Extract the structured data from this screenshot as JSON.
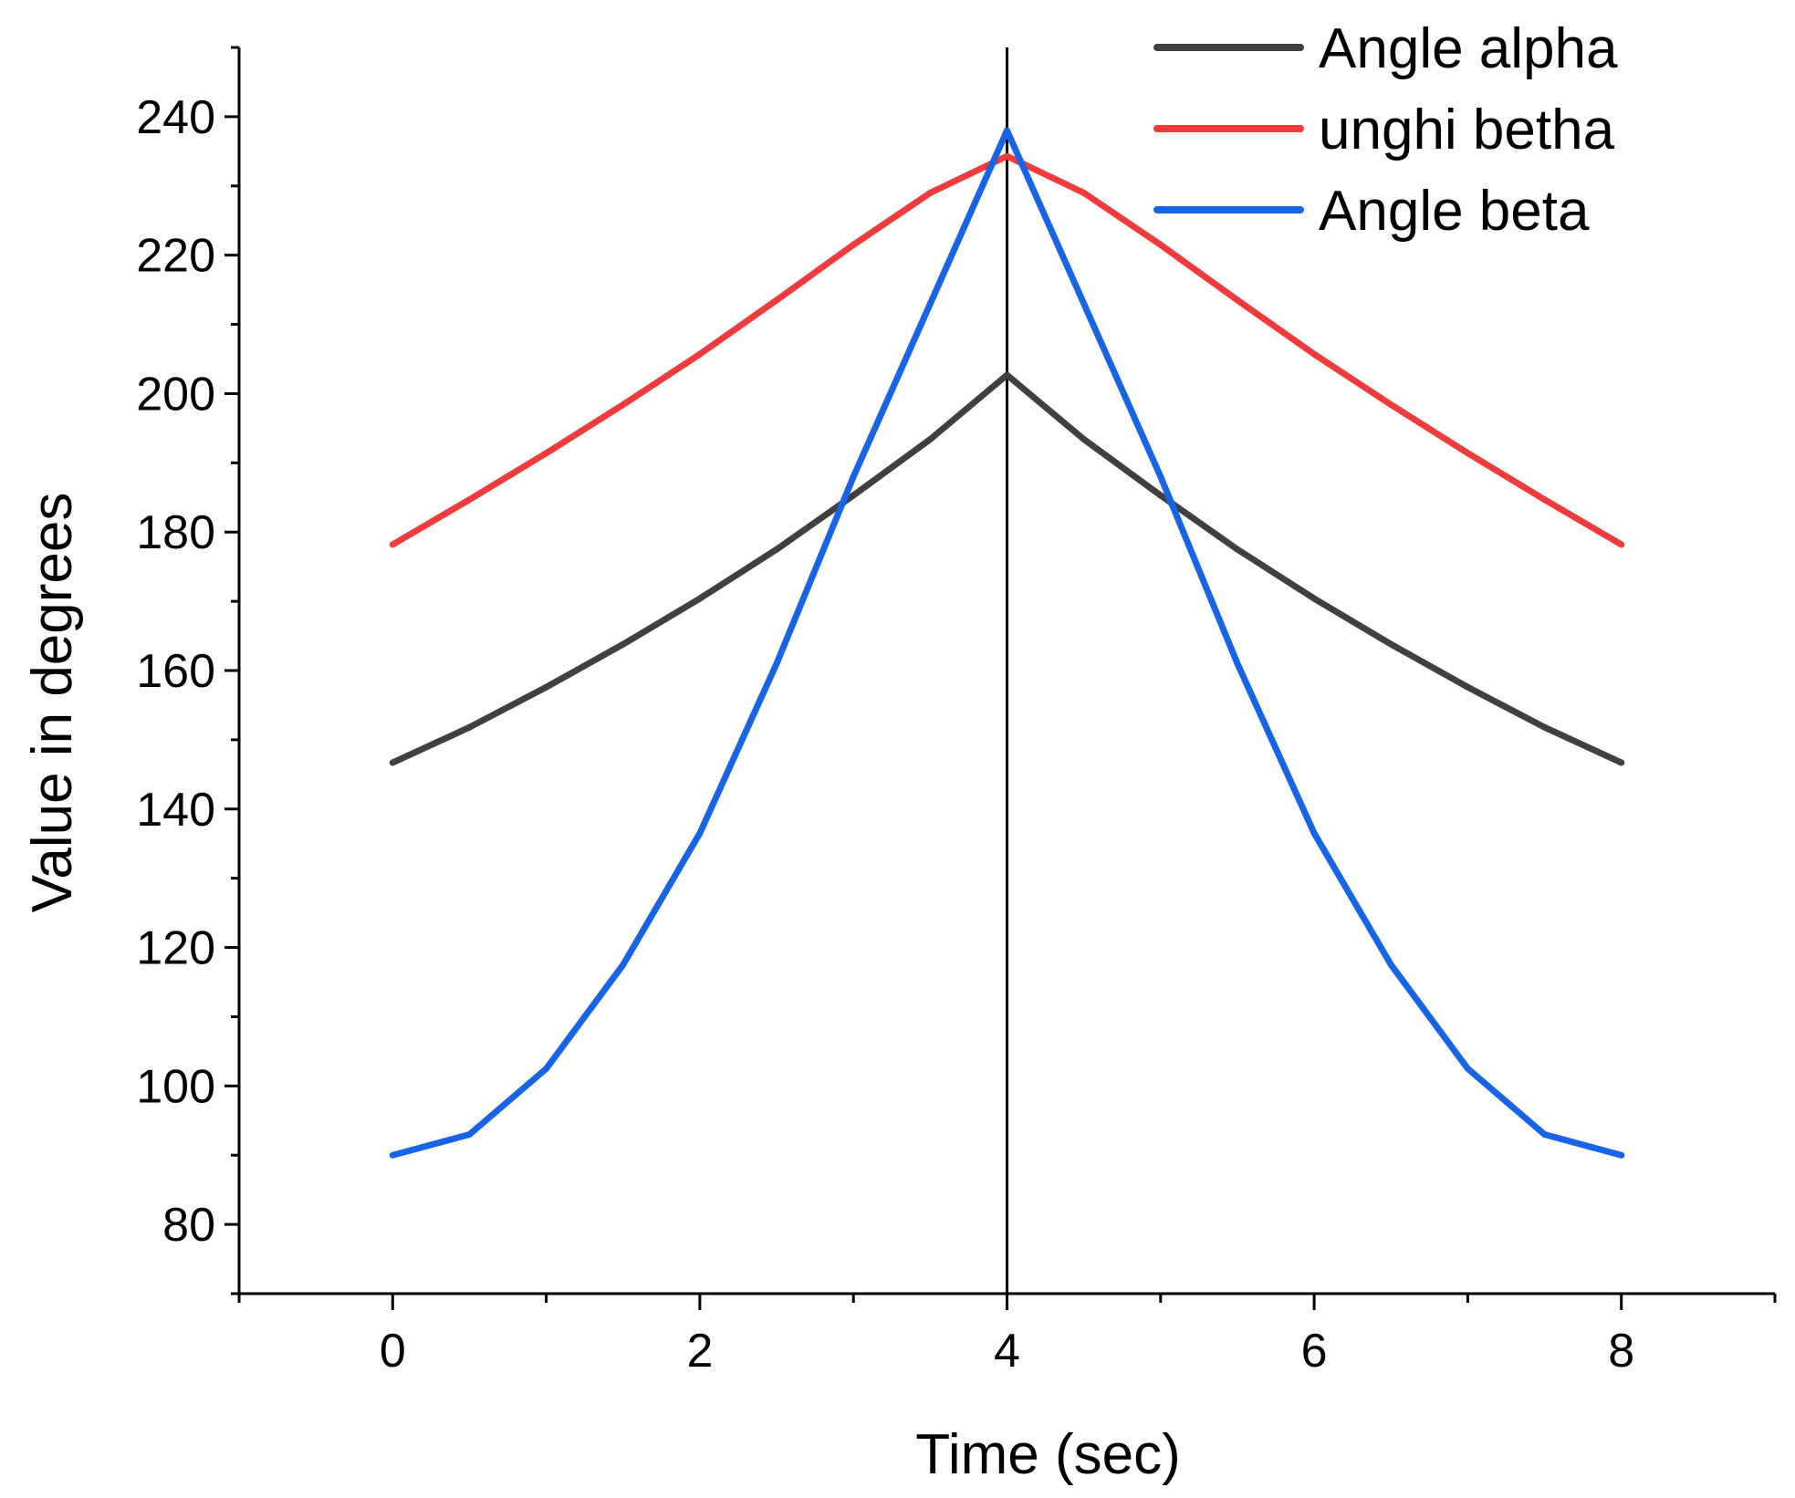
{
  "chart_data": {
    "type": "line",
    "title": "",
    "xlabel": "Time (sec)",
    "ylabel": "Value in degrees",
    "xlim": [
      -1,
      9
    ],
    "ylim": [
      70,
      250
    ],
    "xticks": [
      0,
      2,
      4,
      6,
      8
    ],
    "xtick_labels": [
      "0",
      "2",
      "4",
      "6",
      "8"
    ],
    "yticks": [
      80,
      100,
      120,
      140,
      160,
      180,
      200,
      220,
      240
    ],
    "ytick_labels": [
      "80",
      "100",
      "120",
      "140",
      "160",
      "180",
      "200",
      "220",
      "240"
    ],
    "grid": false,
    "legend_position": "top-right",
    "vertical_marker_x": 4,
    "x": [
      0,
      0.5,
      1,
      1.5,
      2,
      2.5,
      3,
      3.5,
      4,
      4.5,
      5,
      5.5,
      6,
      6.5,
      7,
      7.5,
      8
    ],
    "series": [
      {
        "name": "Angle alpha",
        "color": "#404040",
        "values": [
          146.7,
          151.8,
          157.6,
          163.8,
          170.4,
          177.5,
          185.3,
          193.4,
          202.7,
          193.4,
          185.3,
          177.5,
          170.4,
          163.8,
          157.6,
          151.8,
          146.7
        ]
      },
      {
        "name": "unghi betha",
        "color": "#ef3b3b",
        "values": [
          178.2,
          184.7,
          191.4,
          198.4,
          205.7,
          213.5,
          221.5,
          229.0,
          234.3,
          229.0,
          221.5,
          213.5,
          205.7,
          198.4,
          191.4,
          184.7,
          178.2
        ]
      },
      {
        "name": "Angle beta",
        "color": "#1764e6",
        "values": [
          90.0,
          93.0,
          102.5,
          117.5,
          136.5,
          161.0,
          188.0,
          213.0,
          238.0,
          213.0,
          188.0,
          161.0,
          136.5,
          117.5,
          102.5,
          93.0,
          90.0
        ]
      }
    ]
  }
}
